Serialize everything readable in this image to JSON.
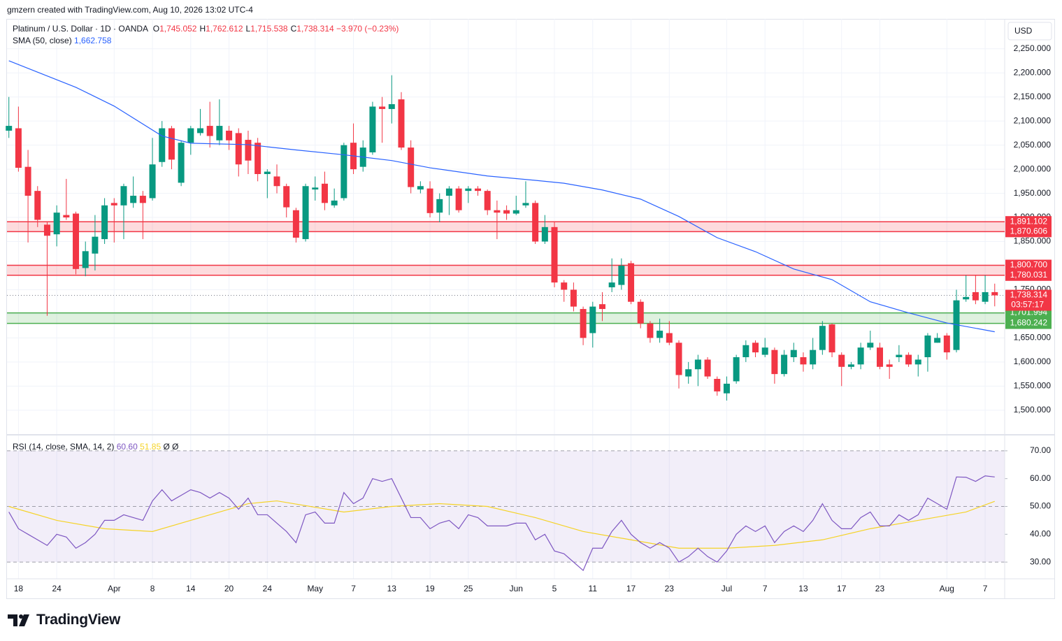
{
  "header": "gmzern created with TradingView.com, Aug 10, 2026 13:02 UTC-4",
  "logo": "TradingView",
  "chart_data": {
    "type": "candlestick",
    "legend": {
      "title": "Platinum / U.S. Dollar · 1D · OANDA",
      "items": [
        {
          "key": "O",
          "value": "1,745.052"
        },
        {
          "key": "H",
          "value": "1,762.612"
        },
        {
          "key": "L",
          "value": "1,715.538"
        },
        {
          "key": "C",
          "value": "1,738.314"
        }
      ],
      "change": "−3.970 (−0.23%)"
    },
    "currency": "USD",
    "up_color": "#089981",
    "down_color": "#f23645",
    "candles": [
      [
        2080,
        2150,
        2065,
        2090
      ],
      [
        2085,
        2130,
        1995,
        2003
      ],
      [
        2005,
        2040,
        1848,
        1945
      ],
      [
        1955,
        1965,
        1880,
        1895
      ],
      [
        1885,
        1890,
        1696,
        1862
      ],
      [
        1865,
        1925,
        1840,
        1910
      ],
      [
        1905,
        1980,
        1895,
        1900
      ],
      [
        1908,
        1912,
        1782,
        1793
      ],
      [
        1795,
        1850,
        1778,
        1830
      ],
      [
        1825,
        1905,
        1790,
        1860
      ],
      [
        1855,
        1940,
        1845,
        1925
      ],
      [
        1930,
        1940,
        1848,
        1925
      ],
      [
        1925,
        1970,
        1855,
        1965
      ],
      [
        1930,
        1985,
        1920,
        1945
      ],
      [
        1945,
        1955,
        1855,
        1930
      ],
      [
        1940,
        2065,
        1935,
        2010
      ],
      [
        2015,
        2100,
        2005,
        2085
      ],
      [
        2085,
        2090,
        2000,
        2020
      ],
      [
        1972,
        2060,
        1965,
        2055
      ],
      [
        2055,
        2090,
        2030,
        2085
      ],
      [
        2075,
        2125,
        2070,
        2085
      ],
      [
        2090,
        2140,
        2045,
        2069
      ],
      [
        2060,
        2145,
        2050,
        2090
      ],
      [
        2080,
        2090,
        2040,
        2060
      ],
      [
        2075,
        2085,
        1985,
        2010
      ],
      [
        2061,
        2080,
        1990,
        2018
      ],
      [
        2055,
        2065,
        1975,
        1990
      ],
      [
        1990,
        2000,
        1940,
        1995
      ],
      [
        1985,
        2010,
        1950,
        1965
      ],
      [
        1965,
        1970,
        1900,
        1921
      ],
      [
        1915,
        1920,
        1848,
        1858
      ],
      [
        1855,
        1970,
        1850,
        1965
      ],
      [
        1958,
        1985,
        1935,
        1962
      ],
      [
        1970,
        1995,
        1915,
        1930
      ],
      [
        1925,
        1960,
        1920,
        1935
      ],
      [
        1940,
        2055,
        1935,
        2050
      ],
      [
        2055,
        2095,
        1990,
        2000
      ],
      [
        2005,
        2060,
        1995,
        2045
      ],
      [
        2035,
        2140,
        2030,
        2130
      ],
      [
        2130,
        2150,
        2055,
        2125
      ],
      [
        2125,
        2195,
        2095,
        2135
      ],
      [
        2145,
        2160,
        2040,
        2045
      ],
      [
        2045,
        2060,
        1950,
        1963
      ],
      [
        1958,
        1975,
        1950,
        1965
      ],
      [
        1960,
        1975,
        1900,
        1909
      ],
      [
        1910,
        1950,
        1890,
        1938
      ],
      [
        1945,
        1965,
        1905,
        1960
      ],
      [
        1960,
        1965,
        1910,
        1915
      ],
      [
        1955,
        1965,
        1930,
        1960
      ],
      [
        1960,
        1965,
        1945,
        1955
      ],
      [
        1955,
        1958,
        1905,
        1915
      ],
      [
        1915,
        1935,
        1855,
        1910
      ],
      [
        1915,
        1925,
        1895,
        1908
      ],
      [
        1908,
        1945,
        1905,
        1915
      ],
      [
        1925,
        1975,
        1920,
        1930
      ],
      [
        1930,
        1935,
        1845,
        1850
      ],
      [
        1850,
        1905,
        1845,
        1880
      ],
      [
        1880,
        1890,
        1755,
        1765
      ],
      [
        1765,
        1770,
        1725,
        1750
      ],
      [
        1750,
        1765,
        1705,
        1715
      ],
      [
        1710,
        1715,
        1635,
        1650
      ],
      [
        1660,
        1725,
        1630,
        1715
      ],
      [
        1720,
        1745,
        1685,
        1710
      ],
      [
        1755,
        1815,
        1745,
        1765
      ],
      [
        1760,
        1815,
        1750,
        1800
      ],
      [
        1805,
        1810,
        1720,
        1725
      ],
      [
        1725,
        1730,
        1670,
        1680
      ],
      [
        1680,
        1685,
        1640,
        1650
      ],
      [
        1650,
        1690,
        1640,
        1665
      ],
      [
        1660,
        1685,
        1635,
        1640
      ],
      [
        1640,
        1645,
        1545,
        1573
      ],
      [
        1570,
        1600,
        1555,
        1585
      ],
      [
        1585,
        1615,
        1550,
        1605
      ],
      [
        1605,
        1610,
        1565,
        1570
      ],
      [
        1565,
        1570,
        1530,
        1539
      ],
      [
        1535,
        1570,
        1520,
        1555
      ],
      [
        1560,
        1615,
        1555,
        1610
      ],
      [
        1610,
        1645,
        1600,
        1635
      ],
      [
        1640,
        1645,
        1610,
        1620
      ],
      [
        1615,
        1650,
        1610,
        1630
      ],
      [
        1625,
        1630,
        1555,
        1575
      ],
      [
        1575,
        1625,
        1570,
        1615
      ],
      [
        1610,
        1640,
        1600,
        1625
      ],
      [
        1610,
        1620,
        1580,
        1595
      ],
      [
        1595,
        1650,
        1585,
        1625
      ],
      [
        1625,
        1685,
        1615,
        1675
      ],
      [
        1678,
        1680,
        1610,
        1620
      ],
      [
        1615,
        1620,
        1550,
        1590
      ],
      [
        1590,
        1600,
        1585,
        1595
      ],
      [
        1595,
        1640,
        1585,
        1630
      ],
      [
        1630,
        1665,
        1625,
        1640
      ],
      [
        1630,
        1640,
        1585,
        1590
      ],
      [
        1595,
        1605,
        1565,
        1590
      ],
      [
        1610,
        1635,
        1600,
        1615
      ],
      [
        1615,
        1620,
        1590,
        1595
      ],
      [
        1595,
        1615,
        1570,
        1605
      ],
      [
        1610,
        1660,
        1580,
        1655
      ],
      [
        1640,
        1660,
        1640,
        1650
      ],
      [
        1655,
        1660,
        1605,
        1620
      ],
      [
        1625,
        1750,
        1620,
        1728
      ],
      [
        1730,
        1780,
        1725,
        1735
      ],
      [
        1745,
        1780,
        1720,
        1728
      ],
      [
        1725,
        1780,
        1720,
        1745
      ],
      [
        1745.052,
        1762.612,
        1715.538,
        1738.314
      ]
    ],
    "xticks": [
      {
        "value": 1,
        "label": "18"
      },
      {
        "value": 5,
        "label": "24"
      },
      {
        "value": 11,
        "label": "Apr"
      },
      {
        "value": 15,
        "label": "8"
      },
      {
        "value": 19,
        "label": "14"
      },
      {
        "value": 23,
        "label": "20"
      },
      {
        "value": 27,
        "label": "24"
      },
      {
        "value": 32,
        "label": "May"
      },
      {
        "value": 36,
        "label": "7"
      },
      {
        "value": 40,
        "label": "13"
      },
      {
        "value": 44,
        "label": "19"
      },
      {
        "value": 48,
        "label": "25"
      },
      {
        "value": 53,
        "label": "Jun"
      },
      {
        "value": 57,
        "label": "5"
      },
      {
        "value": 61,
        "label": "11"
      },
      {
        "value": 65,
        "label": "17"
      },
      {
        "value": 69,
        "label": "23"
      },
      {
        "value": 75,
        "label": "Jul"
      },
      {
        "value": 79,
        "label": "7"
      },
      {
        "value": 83,
        "label": "13"
      },
      {
        "value": 87,
        "label": "17"
      },
      {
        "value": 91,
        "label": "23"
      },
      {
        "value": 98,
        "label": "Aug"
      },
      {
        "value": 102,
        "label": "7"
      }
    ],
    "ylim": [
      1449,
      2312
    ],
    "yticks": [
      {
        "value": 1500,
        "label": "1,500.000"
      },
      {
        "value": 1550,
        "label": "1,550.000"
      },
      {
        "value": 1600,
        "label": "1,600.000"
      },
      {
        "value": 1650,
        "label": "1,650.000"
      },
      {
        "value": 1700,
        "label": "1,700.000"
      },
      {
        "value": 1750,
        "label": "1,750.000"
      },
      {
        "value": 1800,
        "label": "1,800.000"
      },
      {
        "value": 1850,
        "label": "1,850.000"
      },
      {
        "value": 1900,
        "label": "1,900.000"
      },
      {
        "value": 1950,
        "label": "1,950.000"
      },
      {
        "value": 2000,
        "label": "2,000.000"
      },
      {
        "value": 2050,
        "label": "2,050.000"
      },
      {
        "value": 2100,
        "label": "2,100.000"
      },
      {
        "value": 2150,
        "label": "2,150.000"
      },
      {
        "value": 2200,
        "label": "2,200.000"
      },
      {
        "value": 2250,
        "label": "2,250.000"
      }
    ],
    "grid": true,
    "zones": [
      {
        "low": 1870.606,
        "high": 1891.102,
        "low_label": "1,870.606",
        "high_label": "1,891.102",
        "color": "#f23645"
      },
      {
        "low": 1780.031,
        "high": 1800.7,
        "low_label": "1,780.031",
        "high_label": "1,800.700",
        "color": "#f23645"
      },
      {
        "low": 1680.242,
        "high": 1701.994,
        "low_label": "1,680.242",
        "high_label": "1,701.994",
        "color": "#4caf50"
      }
    ],
    "last_price": {
      "value": 1738.314,
      "label": "1,738.314",
      "countdown": "03:57:17"
    },
    "sma": {
      "name": "SMA (50, close)",
      "value_label": "1,662.758",
      "color": "#2962ff",
      "x": [
        0,
        7,
        11,
        16,
        19,
        25,
        30,
        35,
        40,
        44,
        50,
        55,
        58,
        62,
        66,
        70,
        74,
        78,
        82,
        86,
        90,
        94,
        98,
        103
      ],
      "values": [
        2225,
        2170,
        2131,
        2069,
        2054,
        2051,
        2040,
        2030,
        2018,
        2003,
        1986,
        1977,
        1971,
        1957,
        1938,
        1902,
        1858,
        1829,
        1793,
        1771,
        1725,
        1702,
        1681,
        1662.758
      ]
    },
    "rsi": {
      "name": "RSI (14, close, SMA, 14, 2)",
      "value_label": "60.60",
      "sma_label": "51.85",
      "extra": "Ø Ø",
      "color": "#7e57c2",
      "sma_color": "#f5d327",
      "values": [
        48,
        42,
        40,
        38,
        36,
        40,
        39,
        35,
        37,
        40,
        45,
        45,
        47,
        46,
        45,
        52,
        56,
        52,
        54,
        56,
        55,
        53,
        55,
        53,
        49,
        53,
        47,
        47,
        44,
        41,
        37,
        47,
        48,
        44,
        44,
        55,
        51,
        53,
        60,
        59,
        60,
        53,
        46,
        46,
        42,
        44,
        45,
        42,
        47,
        46,
        43,
        43,
        43,
        44,
        44,
        38,
        40,
        34,
        33,
        30,
        27,
        35,
        35,
        41,
        45,
        40,
        37,
        35,
        37,
        35,
        30,
        32,
        35,
        32,
        30,
        34,
        40,
        43,
        41,
        43,
        37,
        41,
        43,
        41,
        45,
        51,
        45,
        42,
        42,
        46,
        48,
        43,
        43,
        47,
        45,
        47,
        53,
        51,
        49,
        60.6,
        60.5,
        59,
        61,
        60.6
      ],
      "sma_x": [
        0,
        5,
        10,
        15,
        20,
        25,
        28,
        35,
        40,
        45,
        50,
        55,
        60,
        65,
        70,
        75,
        80,
        85,
        90,
        95,
        100,
        103
      ],
      "sma_values": [
        50,
        45,
        42,
        41,
        46,
        51,
        52,
        48,
        50,
        51,
        50,
        46,
        41,
        38,
        35,
        35,
        36,
        38,
        42,
        45,
        48,
        51.85
      ],
      "ylim": [
        24,
        75
      ],
      "yticks": [
        {
          "value": 30,
          "label": "30.00"
        },
        {
          "value": 40,
          "label": "40.00"
        },
        {
          "value": 50,
          "label": "50.00"
        },
        {
          "value": 60,
          "label": "60.00"
        },
        {
          "value": 70,
          "label": "70.00"
        }
      ],
      "levels": [
        30,
        50,
        70
      ]
    }
  }
}
